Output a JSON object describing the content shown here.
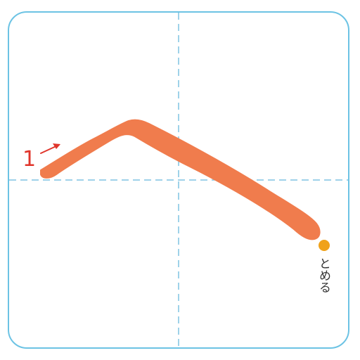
{
  "stroke_number": "1",
  "end_label": "とめる",
  "colors": {
    "frame": "#6cc3e4",
    "guide": "#7fc4e2",
    "stroke": "#f07c4d",
    "number": "#e0352b",
    "end_dot": "#f0a21a",
    "label": "#333333"
  }
}
